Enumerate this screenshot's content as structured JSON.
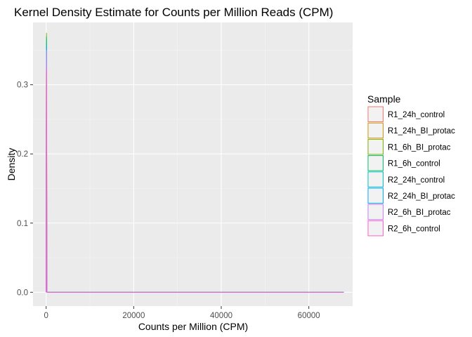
{
  "chart_data": {
    "type": "line",
    "title": "Kernel Density Estimate for Counts per Million Reads (CPM)",
    "xlabel": "Counts per Million (CPM)",
    "ylabel": "Density",
    "xlim": [
      -3000,
      70000
    ],
    "ylim": [
      -0.02,
      0.39
    ],
    "x_ticks": [
      0,
      20000,
      40000,
      60000
    ],
    "x_tick_labels": [
      "0",
      "20000",
      "40000",
      "60000"
    ],
    "y_ticks": [
      0.0,
      0.1,
      0.2,
      0.3
    ],
    "y_tick_labels": [
      "0.0",
      "0.1",
      "0.2",
      "0.3"
    ],
    "grid": true,
    "background": "#ebebeb",
    "legend": {
      "title": "Sample",
      "placement": "right"
    },
    "series": [
      {
        "name": "R1_24h_control",
        "color": "#F8766D",
        "x": [
          0,
          40,
          80,
          120,
          160,
          200,
          300,
          68000
        ],
        "y": [
          0.0,
          0.33,
          0.36,
          0.33,
          0.028,
          0.0,
          0.0,
          0.0
        ]
      },
      {
        "name": "R1_24h_BI_protac",
        "color": "#CD9600",
        "x": [
          0,
          40,
          80,
          120,
          160,
          200,
          300,
          68000
        ],
        "y": [
          0.0,
          0.34,
          0.365,
          0.34,
          0.028,
          0.0,
          0.0,
          0.0
        ]
      },
      {
        "name": "R1_6h_BI_protac",
        "color": "#7CAE00",
        "x": [
          0,
          40,
          80,
          120,
          160,
          200,
          300,
          68000
        ],
        "y": [
          0.0,
          0.35,
          0.375,
          0.35,
          0.028,
          0.0,
          0.0,
          0.0
        ]
      },
      {
        "name": "R1_6h_control",
        "color": "#00BE67",
        "x": [
          0,
          40,
          80,
          120,
          160,
          200,
          300,
          68000
        ],
        "y": [
          0.0,
          0.345,
          0.37,
          0.345,
          0.028,
          0.0,
          0.0,
          0.0
        ]
      },
      {
        "name": "R2_24h_control",
        "color": "#00BFC4",
        "x": [
          0,
          40,
          80,
          120,
          160,
          200,
          300,
          68000
        ],
        "y": [
          0.0,
          0.335,
          0.36,
          0.335,
          0.028,
          0.0,
          0.0,
          0.0
        ]
      },
      {
        "name": "R2_24h_BI_protac",
        "color": "#00A9FF",
        "x": [
          0,
          40,
          80,
          120,
          160,
          200,
          300,
          68000
        ],
        "y": [
          0.0,
          0.33,
          0.355,
          0.33,
          0.028,
          0.0,
          0.0,
          0.0
        ]
      },
      {
        "name": "R2_6h_BI_protac",
        "color": "#C77CFF",
        "x": [
          0,
          40,
          80,
          120,
          160,
          200,
          300,
          68000
        ],
        "y": [
          0.0,
          0.32,
          0.35,
          0.32,
          0.028,
          0.0,
          0.0,
          0.0
        ]
      },
      {
        "name": "R2_6h_control",
        "color": "#FF61CC",
        "x": [
          0,
          40,
          80,
          120,
          160,
          200,
          300,
          68000
        ],
        "y": [
          0.0,
          0.3,
          0.323,
          0.3,
          0.028,
          0.0,
          0.0,
          0.0
        ]
      }
    ]
  }
}
